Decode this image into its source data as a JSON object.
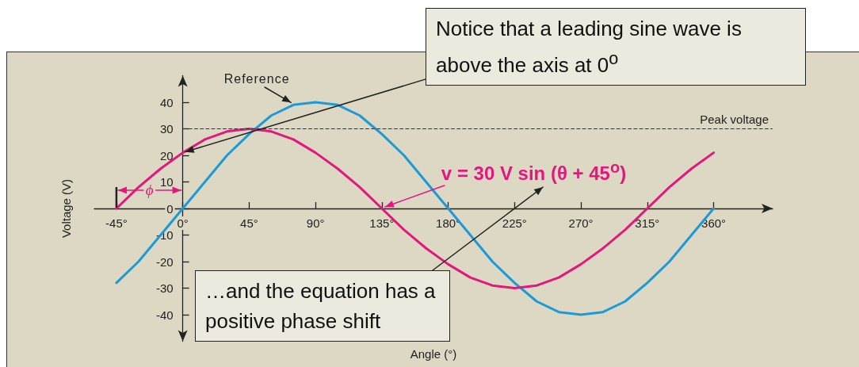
{
  "chart_data": {
    "type": "line",
    "xlabel": "Angle (°)",
    "ylabel": "Voltage (V)",
    "x": [
      -45,
      -30,
      -15,
      0,
      15,
      30,
      45,
      60,
      75,
      90,
      105,
      120,
      135,
      150,
      165,
      180,
      195,
      210,
      225,
      240,
      255,
      270,
      285,
      300,
      315,
      330,
      345,
      360
    ],
    "series": [
      {
        "name": "Reference",
        "color": "#1b9ad8",
        "values": [
          -28,
          -20,
          -10,
          0,
          10,
          20,
          28,
          35,
          39,
          40,
          39,
          35,
          28,
          20,
          10,
          0,
          -10,
          -20,
          -28,
          -35,
          -39,
          -40,
          -39,
          -35,
          -28,
          -20,
          -10,
          0
        ]
      },
      {
        "name": "v = 30 V sin (θ + 45$^{o}$)",
        "color": "#e2187f",
        "values": [
          0,
          8,
          15,
          21,
          26,
          29,
          30,
          29,
          26,
          21,
          15,
          8,
          0,
          -8,
          -15,
          -21,
          -26,
          -29,
          -30,
          -29,
          -26,
          -21,
          -15,
          -8,
          0,
          8,
          15,
          21
        ]
      }
    ],
    "xlim": [
      -60,
      400
    ],
    "xticks": [
      {
        "value": -45,
        "label": "-45°"
      },
      {
        "value": 0,
        "label": "0°"
      },
      {
        "value": 45,
        "label": "45°"
      },
      {
        "value": 90,
        "label": "90°"
      },
      {
        "value": 135,
        "label": "135°"
      },
      {
        "value": 180,
        "label": "180°"
      },
      {
        "value": 225,
        "label": "225°"
      },
      {
        "value": 270,
        "label": "270°"
      },
      {
        "value": 315,
        "label": "315°"
      },
      {
        "value": 360,
        "label": "360°"
      }
    ],
    "ylim": [
      -50,
      50
    ],
    "yticks": [
      -40,
      -30,
      -20,
      -10,
      0,
      10,
      20,
      30,
      40
    ],
    "marker": "none",
    "ref_lines": [
      {
        "axis": "y",
        "value": 30,
        "label": "Peak voltage",
        "line_style": "dashed",
        "color": "#333333"
      }
    ],
    "annotations": [
      {
        "text": "Notice that a leading sine wave is above the axis at 0$^{o}$",
        "x": 0,
        "y": 21
      },
      {
        "text": "ϕ",
        "x": -45,
        "y": 0
      },
      "…and the equation has a positive phase shift"
    ]
  }
}
